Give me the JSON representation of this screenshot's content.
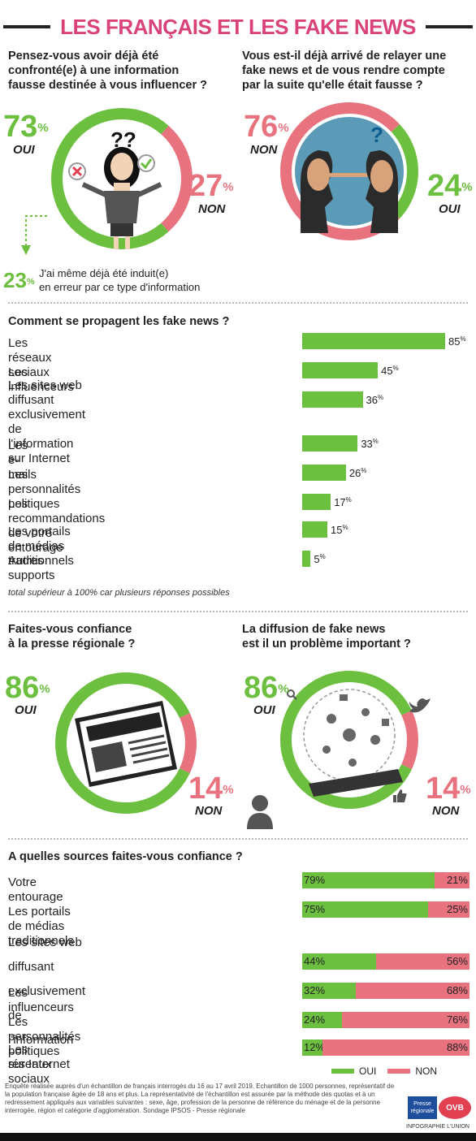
{
  "title": "LES FRANÇAIS ET LES FAKE NEWS",
  "q1": {
    "question_lines": [
      "Pensez-vous avoir déjà été",
      "confronté(e) à une information",
      "fausse destinée à vous influencer ?"
    ],
    "oui_pct": "73",
    "oui_label": "OUI",
    "non_pct": "27",
    "non_label": "NON",
    "sub_pct": "23",
    "sub_lines": [
      "J'ai même déjà été induit(e)",
      "en erreur par ce type d'information"
    ]
  },
  "q2": {
    "question_lines": [
      "Vous est-il déjà arrivé de relayer une",
      "fake news et de vous rendre compte",
      "par la suite qu'elle était fausse ?"
    ],
    "non_pct": "76",
    "non_label": "NON",
    "oui_pct": "24",
    "oui_label": "OUI"
  },
  "pct_sign": "%",
  "colors": {
    "oui": "#6cbf3f",
    "non": "#e8737f",
    "title": "#d9437a"
  },
  "chart_data": [
    {
      "type": "bar",
      "title": "Comment se propagent les fake news ?",
      "categories": [
        "Les réseaux sociaux",
        "Les influenceurs",
        "Les sites web diffusant exclusivement de l'information sur Internet",
        "Les e-mails",
        "Les personnalités politiques",
        "Les recommandations de votre entourage",
        "Les portails de médias traditionnels",
        "Autres supports"
      ],
      "values": [
        85,
        45,
        36,
        33,
        26,
        17,
        15,
        5
      ],
      "unit": "%",
      "note": "total supérieur à 100% car plusieurs réponses possibles"
    },
    {
      "type": "bar",
      "stacked": true,
      "title": "A quelles sources faites-vous confiance ?",
      "categories": [
        "Votre entourage",
        "Les portails de médias traditionnels",
        "Les sites web diffusant exclusivement de l'information sur Internet",
        "Les influenceurs",
        "Les personnalités politiques",
        "Les réseaux sociaux"
      ],
      "series": [
        {
          "name": "OUI",
          "values": [
            79,
            75,
            44,
            32,
            24,
            12
          ]
        },
        {
          "name": "NON",
          "values": [
            21,
            25,
            56,
            68,
            76,
            88
          ]
        }
      ],
      "unit": "%",
      "legend": "bottom-right"
    }
  ],
  "bar_labels_display": [
    [
      "Les réseaux sociaux"
    ],
    [
      "Les influenceurs"
    ],
    [
      "Les sites web diffusant exclusivement",
      "de l'information sur Internet"
    ],
    [
      "Les e-mails"
    ],
    [
      "Les personnalités politiques"
    ],
    [
      "Les recommandations de votre entourage"
    ],
    [
      "Les portails de médias traditionnels"
    ],
    [
      "Autres supports"
    ]
  ],
  "q3": {
    "question_lines": [
      "Faites-vous confiance",
      "à la presse régionale ?"
    ],
    "oui_pct": "86",
    "oui_label": "OUI",
    "non_pct": "14",
    "non_label": "NON"
  },
  "q4": {
    "question_lines": [
      "La diffusion de fake news",
      "est il un problème important ?"
    ],
    "oui_pct": "86",
    "oui_label": "OUI",
    "non_pct": "14",
    "non_label": "NON"
  },
  "trust_labels_display": [
    [
      "Votre entourage"
    ],
    [
      "Les portails de médias traditionnels"
    ],
    [
      "Les sites web diffusant exclusivement",
      "de l'information sur Internet"
    ],
    [
      "Les influenceurs"
    ],
    [
      "Les personnalités politiques"
    ],
    [
      "Les réseaux sociaux"
    ]
  ],
  "legend": {
    "oui": "OUI",
    "non": "NON"
  },
  "footer": {
    "text": "Enquête réalisée auprès d'un échantillon de français interrogés du 16 au 17 avril 2019. Echantillon de 1000 personnes, représentatif de la population française âgée de 18 ans et plus. La représentativité de l'échantillon est assurée par la méthode des quotas et à un redressement appliqués aux variables suivantes : sexe, âge, profession de la personne de référence du ménage et de la personne interrogée, région et catégorie d'agglomération. Sondage IPSOS - Presse régionale",
    "credit": "INFOGRAPHIE L'UNION",
    "logo1": "Presse régionale",
    "logo2": "OVB"
  }
}
